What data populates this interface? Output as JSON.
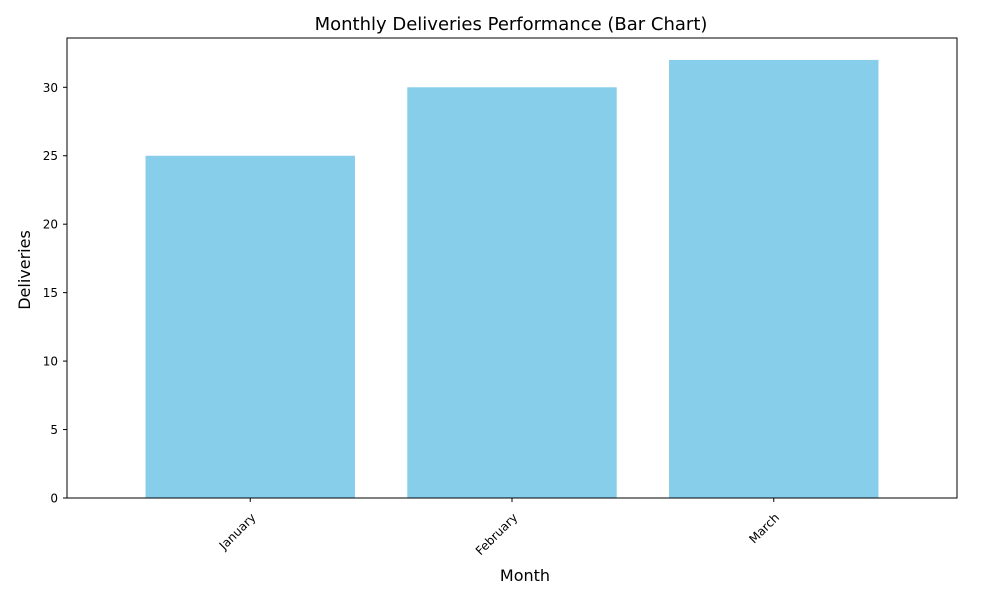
{
  "chart_data": {
    "type": "bar",
    "title": "Monthly Deliveries Performance (Bar Chart)",
    "xlabel": "Month",
    "ylabel": "Deliveries",
    "categories": [
      "January",
      "February",
      "March"
    ],
    "values": [
      25,
      30,
      32
    ],
    "ylim": [
      0,
      33.6
    ],
    "yticks": [
      0,
      5,
      10,
      15,
      20,
      25,
      30
    ],
    "grid": false,
    "legend": "none",
    "bar_color": "#87CEEB",
    "xtick_rotation_degrees": 45
  }
}
